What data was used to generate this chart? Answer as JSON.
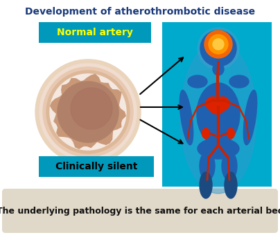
{
  "title": "Development of atherothrombotic disease",
  "title_color": "#1a3a7a",
  "title_fontsize": 10,
  "label1_text": "Normal artery",
  "label1_color": "#FFFF00",
  "label1_bg": "#0099bb",
  "label2_text": "Clinically silent",
  "label2_color": "#000000",
  "label2_bg": "#0099bb",
  "footer_text": "The underlying pathology is the same for each arterial bed",
  "footer_bg": "#e0d8c8",
  "bg_color": "#ffffff",
  "body_bg_color": "#00aacc",
  "arrow_color": "#000000",
  "artery_outer1": "#e8c8b4",
  "artery_outer2": "#ddb898",
  "artery_wall_light": "#f0ddd0",
  "artery_wall": "#d4a888",
  "artery_wall_dark": "#c49070",
  "artery_lumen": "#a07860",
  "body_blue": "#1a4a90",
  "body_blue_light": "#2060b0",
  "body_glow": "#4090d0",
  "brain_orange": "#ff6600",
  "brain_yellow": "#ffaa00",
  "heart_red": "#dd2200",
  "artery_red": "#cc2200"
}
